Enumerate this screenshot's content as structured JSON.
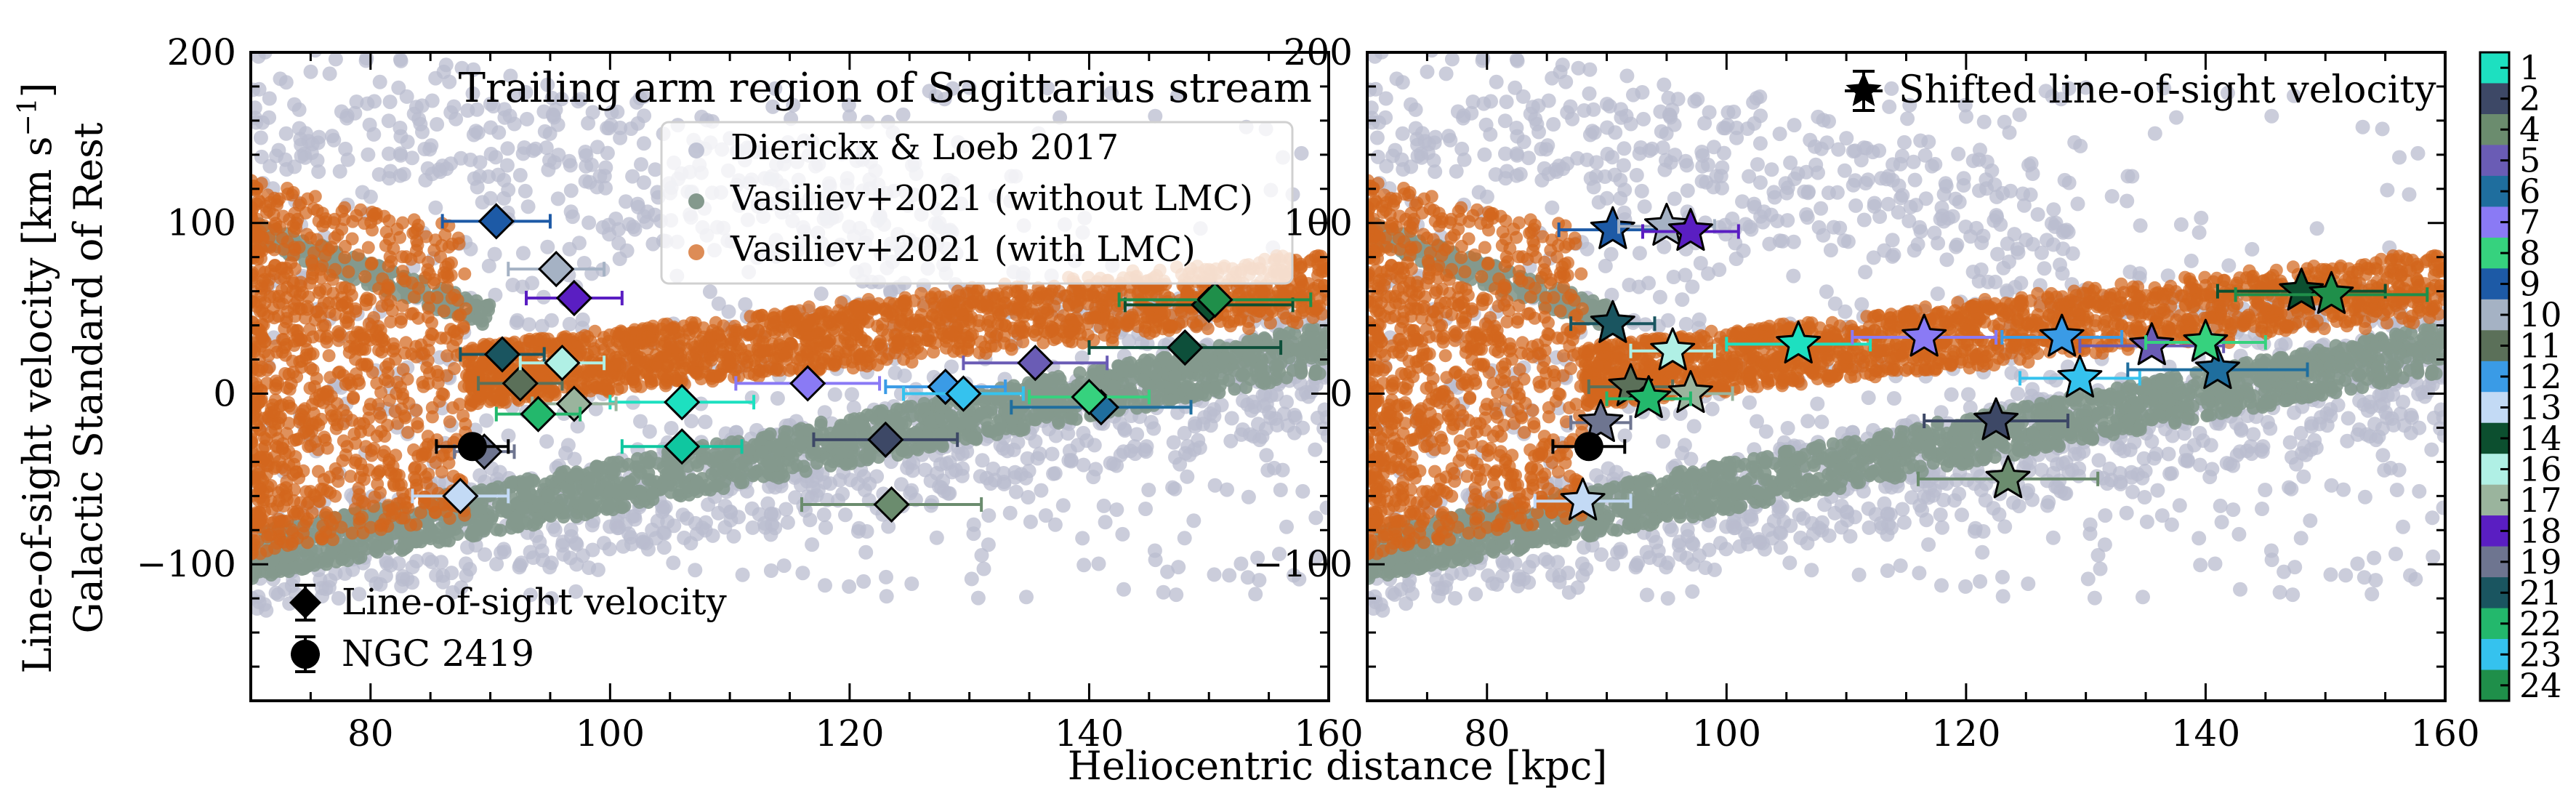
{
  "figure": {
    "ylabel_line1": "Line-of-sight velocity [km s",
    "ylabel_sup": "−1",
    "ylabel_close": "]",
    "ylabel_line2": "Galactic Standard of Rest",
    "xlabel": "Heliocentric distance [kpc]"
  },
  "chart_data": [
    {
      "type": "scatter",
      "panel": "left",
      "title": "Trailing arm region of Sagittarius stream",
      "xlim": [
        70,
        160
      ],
      "ylim": [
        -180,
        200
      ],
      "x_ticks": [
        80,
        100,
        120,
        140,
        160
      ],
      "y_ticks": [
        -100,
        0,
        100,
        200
      ],
      "legend": {
        "placement": "upper-right",
        "entries": [
          {
            "label": "Dierickx & Loeb 2017",
            "color": "#b9bccf"
          },
          {
            "label": "Vasiliev+2021 (without LMC)",
            "color": "#84998d"
          },
          {
            "label": "Vasiliev+2021 (with LMC)",
            "color": "#d2661d"
          }
        ]
      },
      "legend2": {
        "placement": "lower-left",
        "entries": [
          {
            "label": "Line-of-sight velocity",
            "marker": "diamond"
          },
          {
            "label": "NGC 2419",
            "marker": "circle"
          }
        ]
      },
      "stars": [
        {
          "id": "1",
          "x": 106.0,
          "y": -5,
          "xerr": 6,
          "color": "#1de0c0"
        },
        {
          "id": "2",
          "x": 123.0,
          "y": -27,
          "xerr": 6,
          "color": "#3d4866"
        },
        {
          "id": "4",
          "x": 123.5,
          "y": -65,
          "xerr": 7.5,
          "color": "#6b8c6e"
        },
        {
          "id": "5",
          "x": 135.5,
          "y": 18,
          "xerr": 6,
          "color": "#6a5cb5"
        },
        {
          "id": "6",
          "x": 141.0,
          "y": -8,
          "xerr": 7.5,
          "color": "#1f6e9e"
        },
        {
          "id": "7",
          "x": 116.5,
          "y": 6,
          "xerr": 6,
          "color": "#8a7af5"
        },
        {
          "id": "8",
          "x": 140.0,
          "y": -2,
          "xerr": 5,
          "color": "#36d27e"
        },
        {
          "id": "9",
          "x": 90.5,
          "y": 101,
          "xerr": 4.5,
          "color": "#1d5aa6"
        },
        {
          "id": "10",
          "x": 95.5,
          "y": 73,
          "xerr": 4,
          "color": "#a5b2c4"
        },
        {
          "id": "11",
          "x": 92.5,
          "y": 6,
          "xerr": 3.5,
          "color": "#5b7059"
        },
        {
          "id": "12",
          "x": 128.0,
          "y": 4,
          "xerr": 5,
          "color": "#3a9be6"
        },
        {
          "id": "13",
          "x": 87.5,
          "y": -60,
          "xerr": 4,
          "color": "#c3daf5"
        },
        {
          "id": "14",
          "x": 150.0,
          "y": 52,
          "xerr": 7,
          "color": "#0c4f2f"
        },
        {
          "id": "16",
          "x": 96.0,
          "y": 18,
          "xerr": 3.5,
          "color": "#b0f0e5"
        },
        {
          "id": "17",
          "x": 97.0,
          "y": -6,
          "xerr": 3.5,
          "color": "#9ab49d"
        },
        {
          "id": "18",
          "x": 97.0,
          "y": 56,
          "xerr": 4,
          "color": "#5a1ec2"
        },
        {
          "id": "19",
          "x": 89.5,
          "y": -34,
          "xerr": 2.5,
          "color": "#6e7590"
        },
        {
          "id": "21",
          "x": 91.0,
          "y": 23,
          "xerr": 3.5,
          "color": "#1a5560"
        },
        {
          "id": "22",
          "x": 94.0,
          "y": -12,
          "xerr": 3.5,
          "color": "#23b86c"
        },
        {
          "id": "23",
          "x": 129.5,
          "y": 0,
          "xerr": 5,
          "color": "#35c2ee"
        },
        {
          "id": "24",
          "x": 106.0,
          "y": -31,
          "xerr": 5,
          "color": "#0fc7a0"
        },
        {
          "id": "14b",
          "x": 148.0,
          "y": 27,
          "xerr": 8,
          "color": "#0d4f3a"
        },
        {
          "id": "24b",
          "x": 150.5,
          "y": 55,
          "xerr": 8,
          "color": "#1f8f4a"
        }
      ],
      "ngc2419": {
        "x": 88.5,
        "y": -31,
        "xerr": 3
      }
    },
    {
      "type": "scatter",
      "panel": "right",
      "title": "",
      "xlim": [
        70,
        160
      ],
      "ylim": [
        -180,
        200
      ],
      "x_ticks": [
        80,
        100,
        120,
        140,
        160
      ],
      "y_ticks": [
        -100,
        0,
        100,
        200
      ],
      "legend": {
        "placement": "upper-right",
        "entries": [
          {
            "label": "Shifted line-of-sight velocity",
            "marker": "star"
          }
        ]
      },
      "stars": [
        {
          "id": "1",
          "x": 106.0,
          "y": 29,
          "xerr": 6,
          "color": "#1de0c0"
        },
        {
          "id": "2",
          "x": 122.5,
          "y": -16,
          "xerr": 6,
          "color": "#3d4866"
        },
        {
          "id": "4",
          "x": 123.5,
          "y": -50,
          "xerr": 7.5,
          "color": "#6b8c6e"
        },
        {
          "id": "5",
          "x": 135.5,
          "y": 28,
          "xerr": 6,
          "color": "#6a5cb5"
        },
        {
          "id": "6",
          "x": 141.0,
          "y": 14,
          "xerr": 7.5,
          "color": "#1f6e9e"
        },
        {
          "id": "7",
          "x": 116.5,
          "y": 33,
          "xerr": 6,
          "color": "#8a7af5"
        },
        {
          "id": "8",
          "x": 140.0,
          "y": 30,
          "xerr": 5,
          "color": "#36d27e"
        },
        {
          "id": "9",
          "x": 90.5,
          "y": 96,
          "xerr": 4.5,
          "color": "#1d5aa6"
        },
        {
          "id": "10",
          "x": 95.0,
          "y": 98,
          "xerr": 4,
          "color": "#a5b2c4"
        },
        {
          "id": "11",
          "x": 92.0,
          "y": 4,
          "xerr": 3.5,
          "color": "#5b7059"
        },
        {
          "id": "12",
          "x": 128.0,
          "y": 33,
          "xerr": 5,
          "color": "#3a9be6"
        },
        {
          "id": "13",
          "x": 88.0,
          "y": -63,
          "xerr": 4,
          "color": "#c3daf5"
        },
        {
          "id": "14",
          "x": 148.0,
          "y": 60,
          "xerr": 7,
          "color": "#0c4f2f"
        },
        {
          "id": "16",
          "x": 95.5,
          "y": 25,
          "xerr": 3.5,
          "color": "#b0f0e5"
        },
        {
          "id": "17",
          "x": 97.0,
          "y": 0,
          "xerr": 3.5,
          "color": "#9ab49d"
        },
        {
          "id": "18",
          "x": 97.0,
          "y": 95,
          "xerr": 4,
          "color": "#5a1ec2"
        },
        {
          "id": "19",
          "x": 89.5,
          "y": -17,
          "xerr": 2.5,
          "color": "#6e7590"
        },
        {
          "id": "21",
          "x": 90.5,
          "y": 41,
          "xerr": 3.5,
          "color": "#1a5560"
        },
        {
          "id": "22",
          "x": 93.5,
          "y": -3,
          "xerr": 3.5,
          "color": "#23b86c"
        },
        {
          "id": "23",
          "x": 129.5,
          "y": 9,
          "xerr": 5,
          "color": "#35c2ee"
        },
        {
          "id": "24",
          "x": 150.5,
          "y": 58,
          "xerr": 8,
          "color": "#1f8f4a"
        }
      ],
      "ngc2419": {
        "x": 88.5,
        "y": -31,
        "xerr": 3
      }
    }
  ],
  "colorbar": {
    "labels": [
      "1",
      "2",
      "4",
      "5",
      "6",
      "7",
      "8",
      "9",
      "10",
      "11",
      "12",
      "13",
      "14",
      "16",
      "17",
      "18",
      "19",
      "21",
      "22",
      "23",
      "24"
    ],
    "colors": [
      "#1de0c0",
      "#3d4866",
      "#6b8c6e",
      "#6a5cb5",
      "#1f6e9e",
      "#8a7af5",
      "#36d27e",
      "#1d5aa6",
      "#a5b2c4",
      "#5b7059",
      "#3a9be6",
      "#c3daf5",
      "#0c4f2f",
      "#b0f0e5",
      "#9ab49d",
      "#5a1ec2",
      "#6e7590",
      "#1a5560",
      "#23b86c",
      "#35c2ee",
      "#1f8f4a"
    ]
  },
  "colors": {
    "dierickx": "#b9bccf",
    "vasiliev_nolmc": "#84998d",
    "vasiliev_lmc": "#d2661d"
  }
}
